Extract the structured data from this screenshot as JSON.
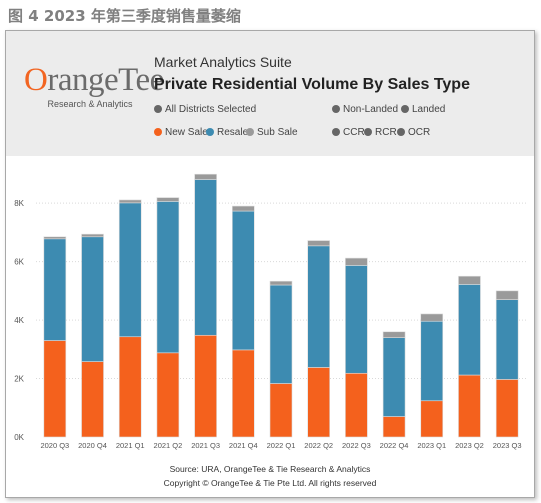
{
  "caption": "图 4 2023 年第三季度销售量萎缩",
  "header": {
    "logo_orange": "O",
    "logo_rest": "rangeTee",
    "logo_sub": "Research & Analytics",
    "suite": "Market Analytics Suite",
    "title": "Private Residential Volume By Sales Type"
  },
  "filters": {
    "districts": {
      "label": "All Districts Selected",
      "color": "#666666"
    },
    "non_landed": {
      "label": "Non-Landed",
      "color": "#666666"
    },
    "landed": {
      "label": "Landed",
      "color": "#666666"
    },
    "ccr": {
      "label": "CCR",
      "color": "#666666"
    },
    "rcr": {
      "label": "RCR",
      "color": "#666666"
    },
    "ocr": {
      "label": "OCR",
      "color": "#666666"
    }
  },
  "legend": [
    {
      "label": "New Sale",
      "color": "#f4611d"
    },
    {
      "label": "Resale",
      "color": "#3d8bb1"
    },
    {
      "label": "Sub Sale",
      "color": "#9a9a9a"
    }
  ],
  "footer": {
    "source": "Source: URA, OrangeTee & Tie Research & Analytics",
    "copyright": "Copyright © OrangeTee & Tie Pte Ltd. All rights reserved"
  },
  "chart_data": {
    "type": "bar",
    "stacked": true,
    "categories": [
      "2020 Q3",
      "2020 Q4",
      "2021 Q1",
      "2021 Q2",
      "2021 Q3",
      "2021 Q4",
      "2022 Q1",
      "2022 Q2",
      "2022 Q3",
      "2022 Q4",
      "2023 Q1",
      "2023 Q2",
      "2023 Q3"
    ],
    "series": [
      {
        "name": "New Sale",
        "color": "#f4611d",
        "values": [
          3300,
          2580,
          3430,
          2880,
          3480,
          2980,
          1830,
          2380,
          2180,
          700,
          1240,
          2120,
          1970
        ]
      },
      {
        "name": "Resale",
        "color": "#3d8bb1",
        "values": [
          3480,
          4270,
          4580,
          5180,
          5330,
          4750,
          3370,
          4160,
          3690,
          2700,
          2720,
          3100,
          2730
        ]
      },
      {
        "name": "Sub Sale",
        "color": "#9a9a9a",
        "values": [
          70,
          90,
          100,
          130,
          180,
          170,
          130,
          180,
          250,
          200,
          250,
          280,
          300
        ]
      }
    ],
    "yticks": [
      0,
      2000,
      4000,
      6000,
      8000
    ],
    "ytick_labels": [
      "0K",
      "2K",
      "4K",
      "6K",
      "8K"
    ],
    "ylim": [
      0,
      9100
    ],
    "grid": true,
    "colors": {
      "grid": "#d9d9d9",
      "tick": "#555555",
      "stroke": "#dddddd"
    }
  }
}
